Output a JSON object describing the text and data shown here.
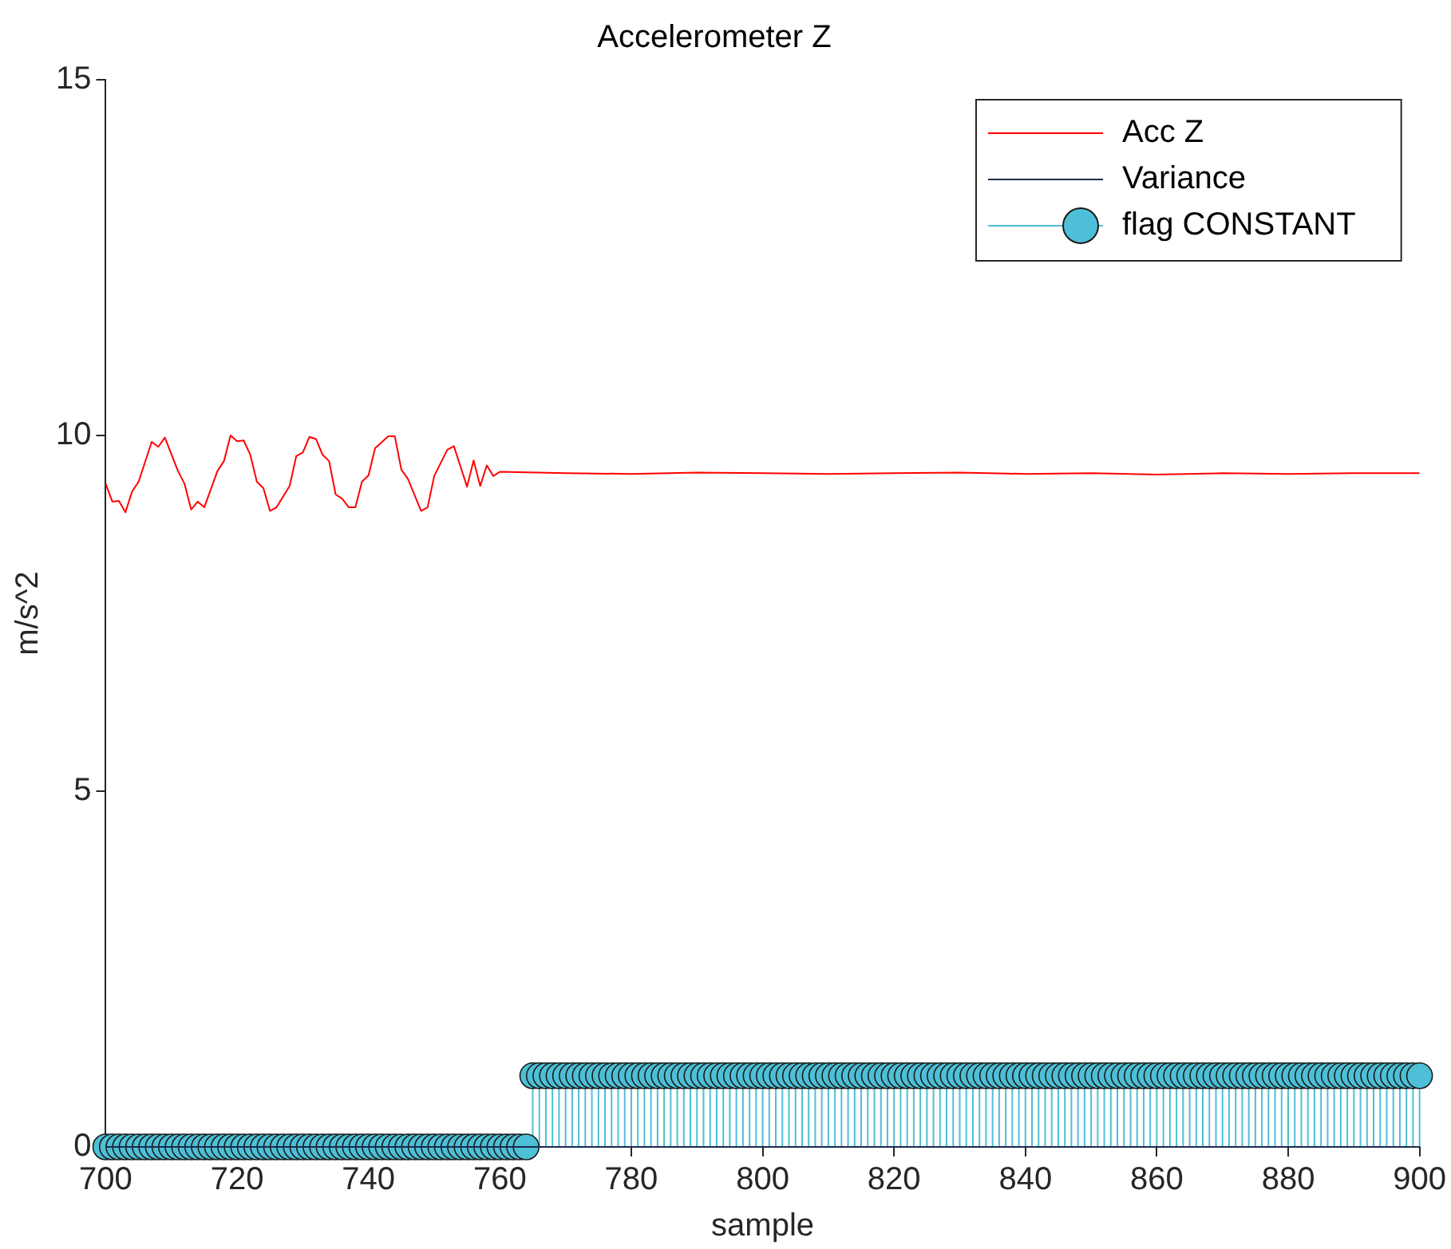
{
  "chart_data": {
    "type": "line",
    "title": "Accelerometer Z",
    "xlabel": "sample",
    "ylabel": "m/s^2",
    "xlim": [
      700,
      900
    ],
    "xticks": [
      700,
      720,
      740,
      760,
      780,
      800,
      820,
      840,
      860,
      880,
      900
    ],
    "ylim": [
      0,
      15
    ],
    "yticks": [
      0,
      5,
      10,
      15
    ],
    "grid": false,
    "legend": "top right",
    "series": [
      {
        "name": "Acc Z",
        "color": "#ff0000",
        "marker": "none",
        "x": [
          700,
          701,
          702,
          703,
          704,
          705,
          707,
          708,
          709,
          711,
          712,
          713,
          714,
          715,
          717,
          718,
          719,
          720,
          721,
          722,
          723,
          724,
          725,
          726,
          728,
          729,
          730,
          731,
          732,
          733,
          734,
          735,
          736,
          737,
          738,
          739,
          740,
          741,
          743,
          744,
          745,
          746,
          748,
          749,
          750,
          752,
          753,
          755,
          756,
          757,
          758,
          759,
          760,
          770,
          780,
          790,
          800,
          810,
          820,
          830,
          840,
          850,
          860,
          870,
          880,
          890,
          900
        ],
        "values": [
          9.32,
          9.07,
          9.08,
          8.92,
          9.21,
          9.35,
          9.91,
          9.84,
          9.97,
          9.5,
          9.32,
          8.96,
          9.07,
          8.99,
          9.5,
          9.64,
          10.0,
          9.92,
          9.93,
          9.73,
          9.35,
          9.26,
          8.94,
          8.99,
          9.29,
          9.71,
          9.76,
          9.98,
          9.95,
          9.73,
          9.64,
          9.17,
          9.11,
          8.99,
          8.99,
          9.35,
          9.44,
          9.82,
          9.99,
          9.99,
          9.52,
          9.39,
          8.94,
          8.99,
          9.43,
          9.8,
          9.85,
          9.28,
          9.65,
          9.29,
          9.58,
          9.43,
          9.49,
          9.47,
          9.46,
          9.48,
          9.47,
          9.46,
          9.47,
          9.48,
          9.46,
          9.47,
          9.45,
          9.47,
          9.46,
          9.47,
          9.47
        ]
      },
      {
        "name": "Variance",
        "color": "#1c2b4c",
        "marker": "none",
        "x": [
          700,
          900
        ],
        "values": [
          0,
          0
        ]
      },
      {
        "name": "flag CONSTANT",
        "type": "lollipop",
        "color": "#4dbfd6",
        "marker": "circle",
        "x": [
          700,
          701,
          702,
          703,
          704,
          705,
          706,
          707,
          708,
          709,
          710,
          711,
          712,
          713,
          714,
          715,
          716,
          717,
          718,
          719,
          720,
          721,
          722,
          723,
          724,
          725,
          726,
          727,
          728,
          729,
          730,
          731,
          732,
          733,
          734,
          735,
          736,
          737,
          738,
          739,
          740,
          741,
          742,
          743,
          744,
          745,
          746,
          747,
          748,
          749,
          750,
          751,
          752,
          753,
          754,
          755,
          756,
          757,
          758,
          759,
          760,
          761,
          762,
          763,
          764,
          765,
          766,
          767,
          768,
          769,
          770,
          771,
          772,
          773,
          774,
          775,
          776,
          777,
          778,
          779,
          780,
          781,
          782,
          783,
          784,
          785,
          786,
          787,
          788,
          789,
          790,
          791,
          792,
          793,
          794,
          795,
          796,
          797,
          798,
          799,
          800,
          801,
          802,
          803,
          804,
          805,
          806,
          807,
          808,
          809,
          810,
          811,
          812,
          813,
          814,
          815,
          816,
          817,
          818,
          819,
          820,
          821,
          822,
          823,
          824,
          825,
          826,
          827,
          828,
          829,
          830,
          831,
          832,
          833,
          834,
          835,
          836,
          837,
          838,
          839,
          840,
          841,
          842,
          843,
          844,
          845,
          846,
          847,
          848,
          849,
          850,
          851,
          852,
          853,
          854,
          855,
          856,
          857,
          858,
          859,
          860,
          861,
          862,
          863,
          864,
          865,
          866,
          867,
          868,
          869,
          870,
          871,
          872,
          873,
          874,
          875,
          876,
          877,
          878,
          879,
          880,
          881,
          882,
          883,
          884,
          885,
          886,
          887,
          888,
          889,
          890,
          891,
          892,
          893,
          894,
          895,
          896,
          897,
          898,
          899,
          900
        ],
        "values": [
          0,
          0,
          0,
          0,
          0,
          0,
          0,
          0,
          0,
          0,
          0,
          0,
          0,
          0,
          0,
          0,
          0,
          0,
          0,
          0,
          0,
          0,
          0,
          0,
          0,
          0,
          0,
          0,
          0,
          0,
          0,
          0,
          0,
          0,
          0,
          0,
          0,
          0,
          0,
          0,
          0,
          0,
          0,
          0,
          0,
          0,
          0,
          0,
          0,
          0,
          0,
          0,
          0,
          0,
          0,
          0,
          0,
          0,
          0,
          0,
          0,
          0,
          0,
          0,
          0,
          1,
          1,
          1,
          1,
          1,
          1,
          1,
          1,
          1,
          1,
          1,
          1,
          1,
          1,
          1,
          1,
          1,
          1,
          1,
          1,
          1,
          1,
          1,
          1,
          1,
          1,
          1,
          1,
          1,
          1,
          1,
          1,
          1,
          1,
          1,
          1,
          1,
          1,
          1,
          1,
          1,
          1,
          1,
          1,
          1,
          1,
          1,
          1,
          1,
          1,
          1,
          1,
          1,
          1,
          1,
          1,
          1,
          1,
          1,
          1,
          1,
          1,
          1,
          1,
          1,
          1,
          1,
          1,
          1,
          1,
          1,
          1,
          1,
          1,
          1,
          1,
          1,
          1,
          1,
          1,
          1,
          1,
          1,
          1,
          1,
          1,
          1,
          1,
          1,
          1,
          1,
          1,
          1,
          1,
          1,
          1,
          1,
          1,
          1,
          1,
          1,
          1,
          1,
          1,
          1,
          1,
          1,
          1,
          1,
          1,
          1,
          1,
          1,
          1,
          1,
          1,
          1,
          1,
          1,
          1,
          1,
          1,
          1,
          1,
          1,
          1,
          1,
          1,
          1,
          1,
          1,
          1,
          1,
          1,
          1,
          1
        ]
      }
    ]
  }
}
